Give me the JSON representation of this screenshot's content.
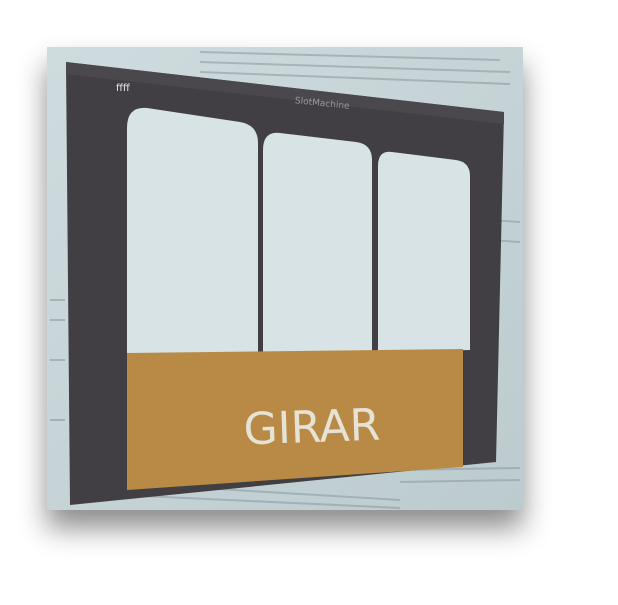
{
  "window": {
    "title": "SlotMachine",
    "label": "ffff"
  },
  "button": {
    "label": "GIRAR"
  }
}
